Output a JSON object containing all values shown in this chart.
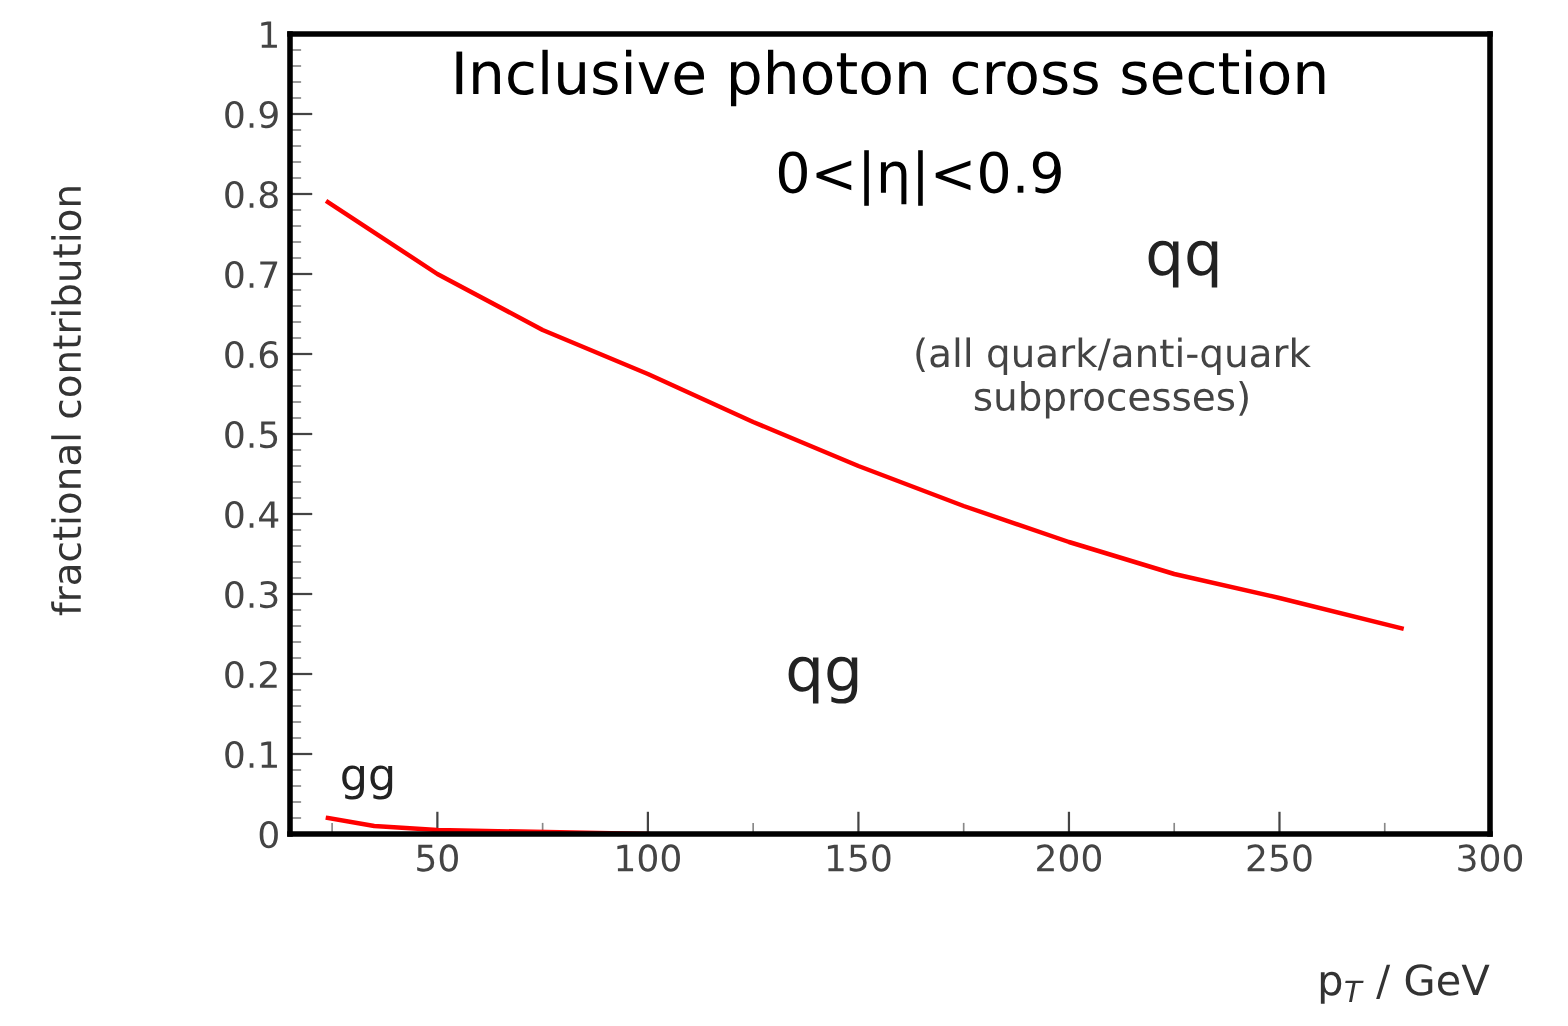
{
  "chart_data": {
    "type": "line",
    "title": "Inclusive photon cross section",
    "subtitle": "0<|η|<0.9",
    "xlabel": "p$_{T}$ / GeV",
    "ylabel": "fractional contribution",
    "series": [
      {
        "color": "#ff0000",
        "x": [
          24,
          50,
          75,
          100,
          125,
          150,
          175,
          200,
          225,
          250,
          279
        ],
        "values": [
          0.79,
          0.7,
          0.63,
          0.575,
          0.515,
          0.46,
          0.41,
          0.365,
          0.325,
          0.295,
          0.257
        ]
      },
      {
        "color": "#ff0000",
        "x": [
          24,
          35,
          50,
          100
        ],
        "values": [
          0.02,
          0.01,
          0.005,
          0.0
        ]
      }
    ],
    "annotations": [
      "qq",
      "(all quark/anti-quark\nsubprocesses)",
      "qg",
      "gg"
    ],
    "xlim": [
      15,
      300
    ],
    "ylim": [
      0,
      1
    ],
    "xticks": [
      50,
      100,
      150,
      200,
      250,
      300
    ],
    "yticks": [
      0,
      0.1,
      0.2,
      0.3,
      0.4,
      0.5,
      0.6,
      0.7,
      0.8,
      0.9,
      1
    ],
    "grid": false,
    "marker": "none",
    "line_style": "solid"
  }
}
